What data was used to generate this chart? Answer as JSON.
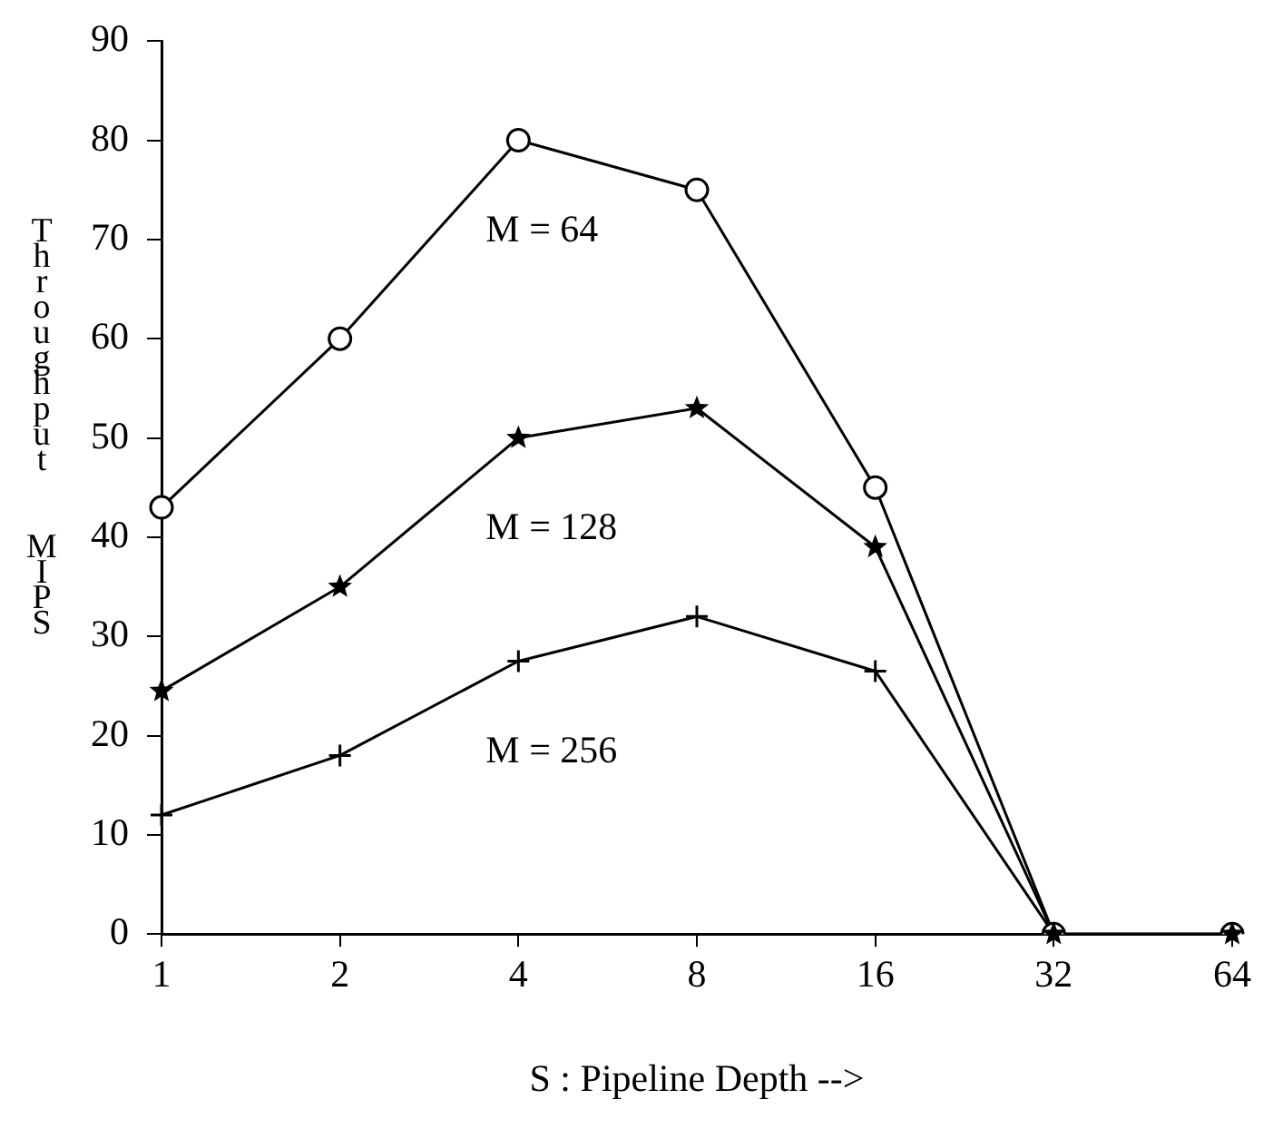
{
  "chart_data": {
    "type": "line",
    "xlabel": "S : Pipeline Depth -->",
    "ylabel": "Throughput MIPS",
    "categories": [
      "1",
      "2",
      "4",
      "8",
      "16",
      "32",
      "64"
    ],
    "series": [
      {
        "name": "M = 64",
        "color": "#000000",
        "marker": "circle",
        "values": [
          43,
          60,
          80,
          75,
          45,
          0,
          0
        ]
      },
      {
        "name": "M = 128",
        "color": "#000000",
        "marker": "star",
        "values": [
          24.5,
          35,
          50,
          53,
          39,
          0,
          0
        ]
      },
      {
        "name": "M = 256",
        "color": "#000000",
        "marker": "cross",
        "values": [
          12,
          18,
          27.5,
          32,
          26.5,
          0,
          0
        ]
      }
    ],
    "ylim": [
      0,
      90
    ],
    "yticks": [
      0,
      10,
      20,
      30,
      40,
      50,
      60,
      70,
      80,
      90
    ],
    "grid": false,
    "legend": false,
    "line_style": "solid"
  }
}
